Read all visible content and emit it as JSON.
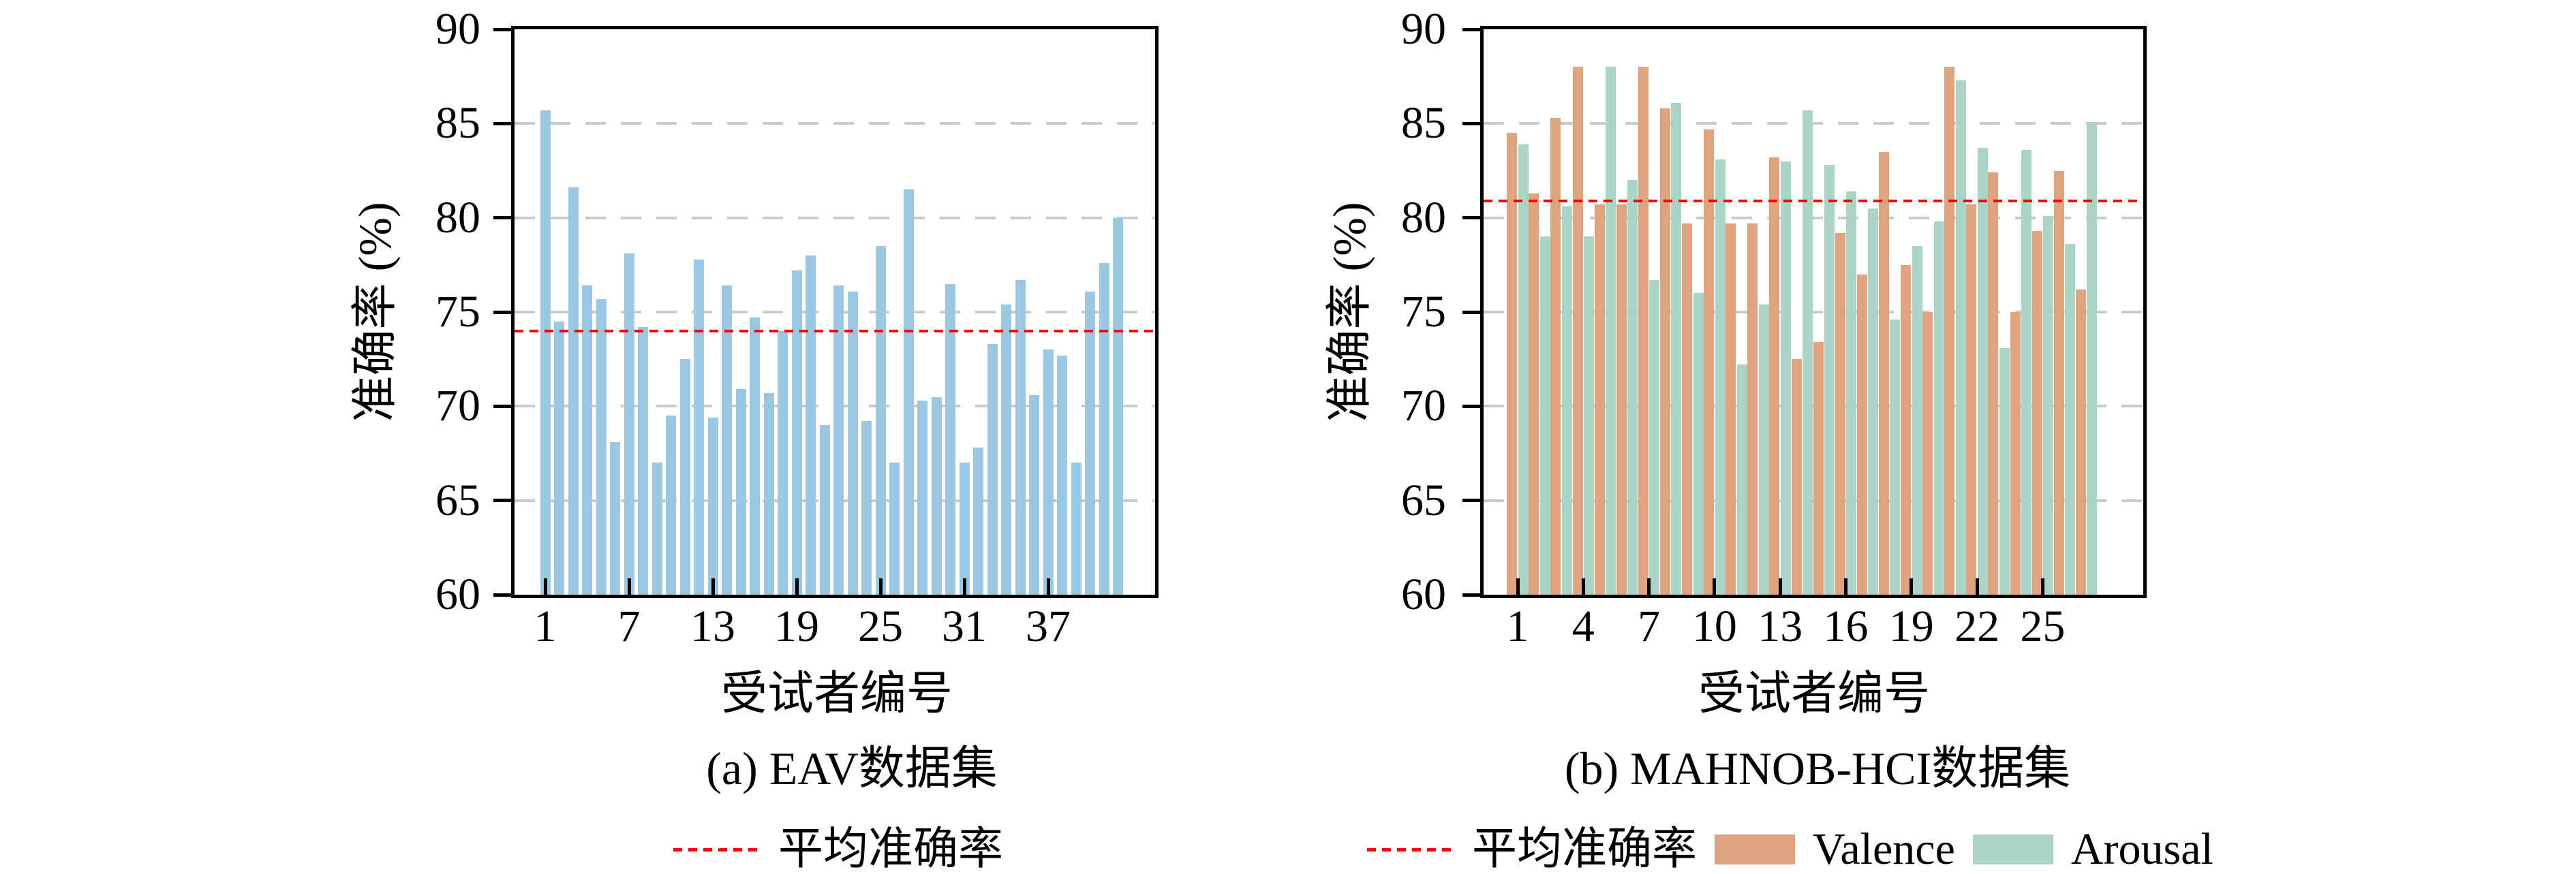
{
  "figure": {
    "background": "#ffffff",
    "description": "Two bar charts of per-subject emotion recognition accuracy with dashed mean lines"
  },
  "chart_data": [
    {
      "id": "eav",
      "type": "bar",
      "caption": "(a) EAV数据集",
      "xlabel": "受试者编号",
      "ylabel": "准确率 (%)",
      "ylim": [
        60,
        90
      ],
      "yticks": [
        60,
        65,
        70,
        75,
        80,
        85,
        90
      ],
      "gridline_values": [
        65,
        70,
        75,
        80,
        85
      ],
      "grid_color": "#c9c9c9",
      "xtick_values": [
        1,
        7,
        13,
        19,
        25,
        31,
        37
      ],
      "subjects": [
        1,
        2,
        3,
        4,
        5,
        6,
        7,
        8,
        9,
        10,
        11,
        12,
        13,
        14,
        15,
        16,
        17,
        18,
        19,
        20,
        21,
        22,
        23,
        24,
        25,
        26,
        27,
        28,
        29,
        30,
        31,
        32,
        33,
        34,
        35,
        36,
        37,
        38,
        39,
        40,
        41,
        42
      ],
      "series": [
        {
          "name": "准确率",
          "color": "#9bc7e2",
          "values": [
            85.7,
            74.5,
            81.6,
            76.4,
            75.7,
            68.1,
            78.1,
            74.2,
            67.0,
            69.5,
            72.5,
            77.8,
            69.4,
            76.4,
            70.9,
            74.7,
            70.7,
            74.0,
            77.2,
            78.0,
            69.0,
            76.4,
            76.1,
            69.2,
            78.5,
            67.0,
            81.5,
            70.3,
            70.5,
            76.5,
            67.0,
            67.8,
            73.3,
            75.4,
            76.7,
            70.6,
            73.0,
            72.7,
            67.0,
            76.1,
            77.6,
            80.0
          ]
        }
      ],
      "mean_line": {
        "label": "平均准确率",
        "value": 74.0,
        "color": "#fe0000"
      },
      "legend_position": "below-center"
    },
    {
      "id": "mahnob-hci",
      "type": "bar",
      "caption": "(b) MAHNOB-HCI数据集",
      "xlabel": "受试者编号",
      "ylabel": "准确率 (%)",
      "ylim": [
        60,
        90
      ],
      "yticks": [
        60,
        65,
        70,
        75,
        80,
        85,
        90
      ],
      "gridline_values": [
        65,
        70,
        75,
        80,
        85
      ],
      "grid_color": "#c9c9c9",
      "xtick_values": [
        1,
        4,
        7,
        10,
        13,
        16,
        19,
        22,
        25
      ],
      "subjects": [
        1,
        2,
        3,
        4,
        5,
        6,
        7,
        8,
        9,
        10,
        11,
        12,
        13,
        14,
        15,
        16,
        17,
        18,
        19,
        20,
        21,
        22,
        23,
        24,
        25,
        26,
        27
      ],
      "series": [
        {
          "name": "Valence",
          "color": "#dda47f",
          "values": [
            84.5,
            81.3,
            85.3,
            88.0,
            80.7,
            80.7,
            88.0,
            85.8,
            79.7,
            84.7,
            79.7,
            79.7,
            83.2,
            72.5,
            73.4,
            79.2,
            77.0,
            83.5,
            77.5,
            75.0,
            88.0,
            80.7,
            82.4,
            75.0,
            79.3,
            82.5,
            76.2
          ]
        },
        {
          "name": "Arousal",
          "color": "#a9d4c6",
          "values": [
            83.9,
            79.0,
            80.6,
            79.0,
            88.0,
            82.0,
            76.7,
            86.1,
            76.0,
            83.1,
            72.2,
            75.4,
            83.0,
            85.7,
            82.8,
            81.4,
            80.5,
            74.6,
            78.5,
            79.8,
            87.3,
            83.7,
            73.1,
            83.6,
            80.1,
            78.6,
            85.1
          ]
        }
      ],
      "mean_line": {
        "label": "平均准确率",
        "value": 80.9,
        "color": "#fe0000"
      },
      "legend_position": "below-center"
    }
  ]
}
